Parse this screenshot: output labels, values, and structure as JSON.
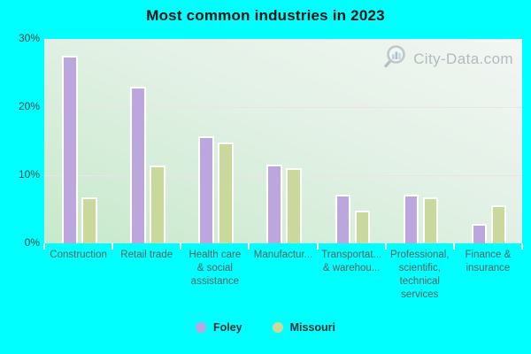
{
  "title": "Most common industries in 2023",
  "watermark": {
    "text": "City-Data.com",
    "icon": "magnifier-bar-chart-icon"
  },
  "legend": [
    {
      "label": "Foley",
      "color": "#bca6de"
    },
    {
      "label": "Missouri",
      "color": "#c9d89b"
    }
  ],
  "colors": {
    "background": "#00ffff",
    "foley_bar": "#bca6de",
    "missouri_bar": "#c9d89b",
    "bar_border": "#ffffff",
    "plot_gradient_top_right": "#f2f6f3",
    "plot_gradient_bottom_left": "#c6e9cb",
    "gridline": "#ece2ec",
    "axis_tick": "#ffffff",
    "title_text": "#121414",
    "axis_text": "#404749",
    "category_text": "#57625f",
    "watermark_text": "#8f979f"
  },
  "chart_data": {
    "type": "bar",
    "title": "Most common industries in 2023",
    "categories": [
      "Construction",
      "Retail trade",
      "Health care & social assistance",
      "Manufacturing",
      "Transportation & warehousing",
      "Professional, scientific, technical services",
      "Finance & insurance"
    ],
    "category_display_lines": [
      [
        "Construction"
      ],
      [
        "Retail trade"
      ],
      [
        "Health care",
        "& social",
        "assistance"
      ],
      [
        "Manufactur..."
      ],
      [
        "Transportat...",
        "& warehou..."
      ],
      [
        "Professional,",
        "scientific,",
        "technical",
        "services"
      ],
      [
        "Finance &",
        "insurance"
      ]
    ],
    "series": [
      {
        "name": "Foley",
        "color": "#bca6de",
        "values": [
          27.5,
          23.0,
          15.7,
          11.5,
          7.1,
          7.2,
          2.8
        ]
      },
      {
        "name": "Missouri",
        "color": "#c9d89b",
        "values": [
          6.8,
          11.4,
          14.8,
          11.1,
          4.8,
          6.7,
          5.6
        ]
      }
    ],
    "xlabel": "",
    "ylabel": "",
    "ylim": [
      0,
      30
    ],
    "ytick_values": [
      0,
      10,
      20,
      30
    ],
    "ytick_labels": [
      "0%",
      "10%",
      "20%",
      "30%"
    ],
    "grid": true,
    "legend_position": "bottom"
  }
}
